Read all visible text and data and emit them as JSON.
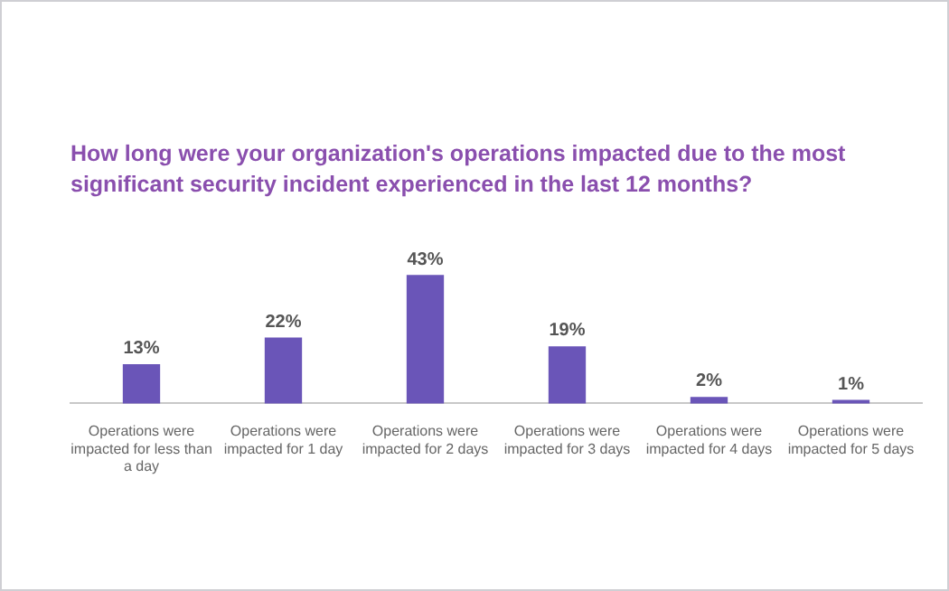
{
  "chart_data": {
    "type": "bar",
    "title": "How long were your organization's operations impacted due to the most significant security incident experienced in the last 12 months?",
    "categories": [
      "Operations were impacted for less than a day",
      "Operations were impacted for 1 day",
      "Operations were impacted for 2 days",
      "Operations were impacted for 3 days",
      "Operations were impacted for 4 days",
      "Operations were impacted for 5 days"
    ],
    "values": [
      13,
      22,
      43,
      19,
      2,
      1
    ],
    "value_labels": [
      "13%",
      "22%",
      "43%",
      "19%",
      "2%",
      "1%"
    ],
    "color": "#6a55b8"
  }
}
